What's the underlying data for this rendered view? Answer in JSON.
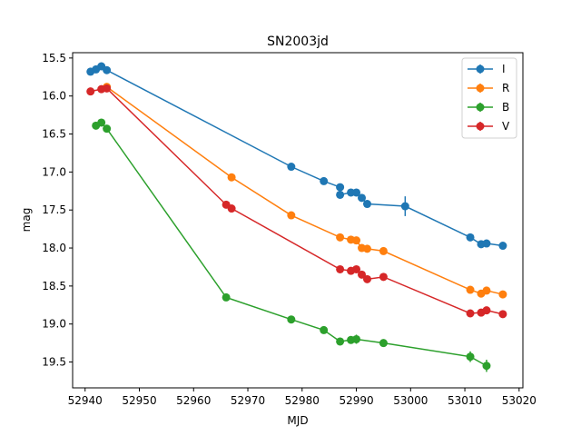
{
  "chart_data": {
    "type": "line",
    "title": "SN2003jd",
    "xlabel": "MJD",
    "ylabel": "mag",
    "xlim": [
      52937.7,
      53020.7
    ],
    "ylim": [
      19.84,
      15.43
    ],
    "y_inverted": true,
    "grid": false,
    "legend_position": "top-right",
    "xticks": [
      52940,
      52950,
      52960,
      52970,
      52980,
      52990,
      53000,
      53010,
      53020
    ],
    "yticks": [
      15.5,
      16.0,
      16.5,
      17.0,
      17.5,
      18.0,
      18.5,
      19.0,
      19.5
    ],
    "series": [
      {
        "name": "I",
        "color": "#1f77b4",
        "points": [
          {
            "x": 52941,
            "y": 15.68,
            "err": 0.03
          },
          {
            "x": 52942,
            "y": 15.65,
            "err": 0.03
          },
          {
            "x": 52943,
            "y": 15.61,
            "err": 0.03
          },
          {
            "x": 52944,
            "y": 15.66,
            "err": 0.03
          },
          {
            "x": 52978,
            "y": 16.93,
            "err": 0.03
          },
          {
            "x": 52984,
            "y": 17.12,
            "err": 0.03
          },
          {
            "x": 52987,
            "y": 17.2,
            "err": 0.03
          },
          {
            "x": 52987,
            "y": 17.3,
            "err": 0.03
          },
          {
            "x": 52989,
            "y": 17.27,
            "err": 0.03
          },
          {
            "x": 52990,
            "y": 17.27,
            "err": 0.04
          },
          {
            "x": 52991,
            "y": 17.34,
            "err": 0.03
          },
          {
            "x": 52992,
            "y": 17.42,
            "err": 0.03
          },
          {
            "x": 52999,
            "y": 17.45,
            "err": 0.13
          },
          {
            "x": 53011,
            "y": 17.86,
            "err": 0.03
          },
          {
            "x": 53013,
            "y": 17.95,
            "err": 0.03
          },
          {
            "x": 53014,
            "y": 17.94,
            "err": 0.03
          },
          {
            "x": 53017,
            "y": 17.97,
            "err": 0.04
          }
        ]
      },
      {
        "name": "R",
        "color": "#ff7f0e",
        "points": [
          {
            "x": 52944,
            "y": 15.88,
            "err": 0.03
          },
          {
            "x": 52967,
            "y": 17.07,
            "err": 0.03
          },
          {
            "x": 52978,
            "y": 17.57,
            "err": 0.03
          },
          {
            "x": 52987,
            "y": 17.86,
            "err": 0.04
          },
          {
            "x": 52989,
            "y": 17.89,
            "err": 0.03
          },
          {
            "x": 52990,
            "y": 17.9,
            "err": 0.03
          },
          {
            "x": 52991,
            "y": 18.0,
            "err": 0.03
          },
          {
            "x": 52992,
            "y": 18.01,
            "err": 0.03
          },
          {
            "x": 52995,
            "y": 18.04,
            "err": 0.03
          },
          {
            "x": 53011,
            "y": 18.55,
            "err": 0.03
          },
          {
            "x": 53013,
            "y": 18.6,
            "err": 0.03
          },
          {
            "x": 53014,
            "y": 18.56,
            "err": 0.04
          },
          {
            "x": 53017,
            "y": 18.61,
            "err": 0.03
          }
        ]
      },
      {
        "name": "B",
        "color": "#2ca02c",
        "points": [
          {
            "x": 52942,
            "y": 16.39,
            "err": 0.03
          },
          {
            "x": 52943,
            "y": 16.35,
            "err": 0.03
          },
          {
            "x": 52944,
            "y": 16.43,
            "err": 0.03
          },
          {
            "x": 52966,
            "y": 18.65,
            "err": 0.03
          },
          {
            "x": 52978,
            "y": 18.94,
            "err": 0.03
          },
          {
            "x": 52984,
            "y": 19.08,
            "err": 0.03
          },
          {
            "x": 52987,
            "y": 19.23,
            "err": 0.05
          },
          {
            "x": 52989,
            "y": 19.21,
            "err": 0.03
          },
          {
            "x": 52990,
            "y": 19.2,
            "err": 0.06
          },
          {
            "x": 52995,
            "y": 19.25,
            "err": 0.03
          },
          {
            "x": 53011,
            "y": 19.43,
            "err": 0.07
          },
          {
            "x": 53014,
            "y": 19.55,
            "err": 0.08
          }
        ]
      },
      {
        "name": "V",
        "color": "#d62728",
        "points": [
          {
            "x": 52941,
            "y": 15.94,
            "err": 0.03
          },
          {
            "x": 52943,
            "y": 15.91,
            "err": 0.03
          },
          {
            "x": 52944,
            "y": 15.9,
            "err": 0.03
          },
          {
            "x": 52966,
            "y": 17.43,
            "err": 0.03
          },
          {
            "x": 52967,
            "y": 17.48,
            "err": 0.03
          },
          {
            "x": 52987,
            "y": 18.28,
            "err": 0.04
          },
          {
            "x": 52989,
            "y": 18.3,
            "err": 0.03
          },
          {
            "x": 52990,
            "y": 18.28,
            "err": 0.03
          },
          {
            "x": 52991,
            "y": 18.35,
            "err": 0.03
          },
          {
            "x": 52992,
            "y": 18.41,
            "err": 0.03
          },
          {
            "x": 52995,
            "y": 18.38,
            "err": 0.03
          },
          {
            "x": 53011,
            "y": 18.86,
            "err": 0.03
          },
          {
            "x": 53013,
            "y": 18.85,
            "err": 0.03
          },
          {
            "x": 53014,
            "y": 18.82,
            "err": 0.03
          },
          {
            "x": 53017,
            "y": 18.87,
            "err": 0.03
          }
        ]
      }
    ]
  }
}
